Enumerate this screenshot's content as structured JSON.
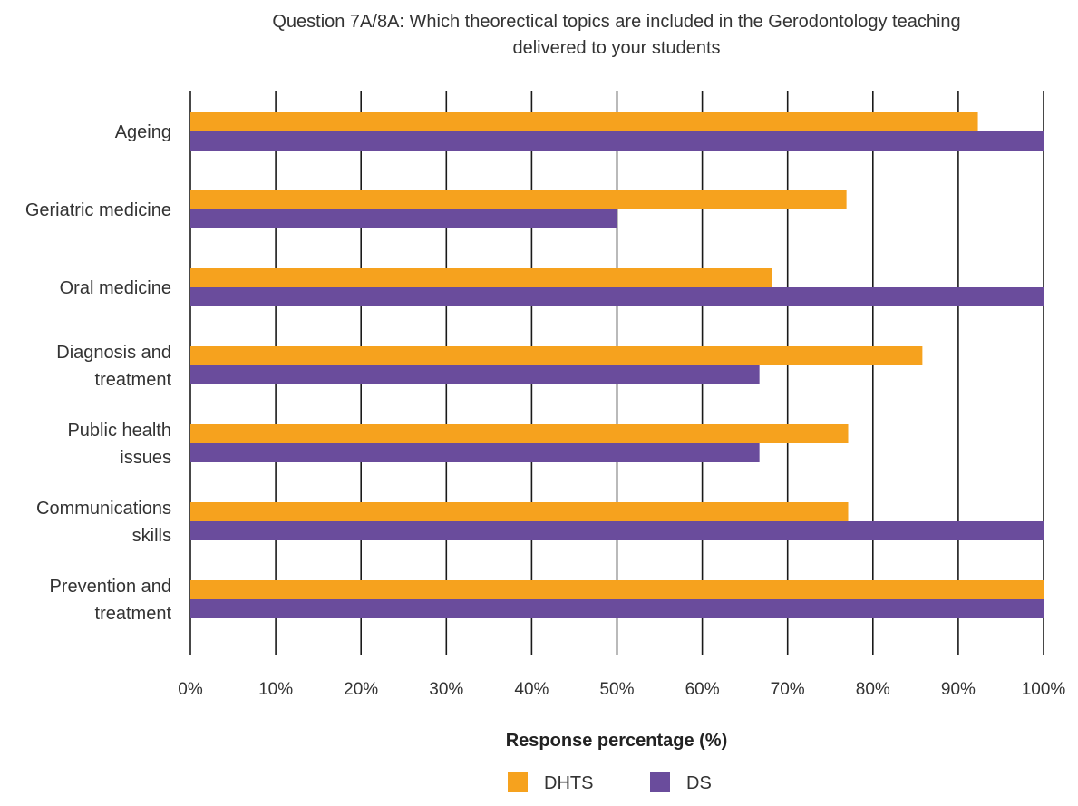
{
  "chart_data": {
    "type": "bar",
    "orientation": "horizontal",
    "title_lines": [
      "Question 7A/8A: Which theorectical topics are included in the Gerodontology teaching",
      "delivered to your students"
    ],
    "categories": [
      [
        "Ageing"
      ],
      [
        "Geriatric medicine"
      ],
      [
        "Oral medicine"
      ],
      [
        "Diagnosis and",
        "treatment"
      ],
      [
        "Public health",
        "issues"
      ],
      [
        "Communications",
        "skills"
      ],
      [
        "Prevention and",
        "treatment"
      ]
    ],
    "series": [
      {
        "name": "DHTS",
        "color": "#F6A21E",
        "values": [
          92.3,
          76.9,
          68.2,
          85.8,
          77.1,
          77.1,
          100
        ]
      },
      {
        "name": "DS",
        "color": "#6A4C9C",
        "values": [
          100,
          50,
          100,
          66.7,
          66.7,
          100,
          100
        ]
      }
    ],
    "xlim": [
      0,
      100
    ],
    "xticks": [
      "0%",
      "10%",
      "20%",
      "30%",
      "40%",
      "50%",
      "60%",
      "70%",
      "80%",
      "90%",
      "100%"
    ],
    "xlabel": "Response percentage (%)",
    "ylabel": "",
    "grid": "vertical",
    "legend_position": "bottom"
  }
}
